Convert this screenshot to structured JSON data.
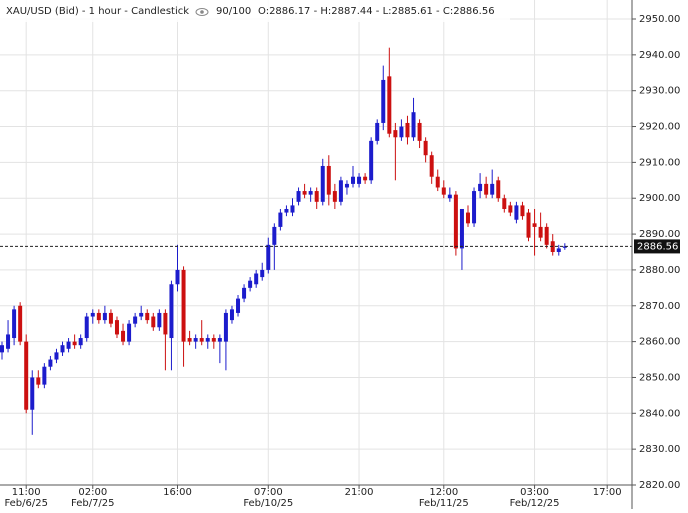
{
  "chart_data": {
    "type": "candlestick",
    "title": "XAU/USD (Bid) - 1 hour - Candlestick",
    "zoom": "90/100",
    "ohlc_text": "O:2886.17 - H:2887.44 - L:2885.61 - C:2886.56",
    "up_color": "#1c1ccc",
    "down_color": "#cc1010",
    "grid": true,
    "ylim": [
      2820,
      2955.3
    ],
    "yticks": [
      {
        "value": 2820,
        "label": "2820.00"
      },
      {
        "value": 2830,
        "label": "2830.00"
      },
      {
        "value": 2840,
        "label": "2840.00"
      },
      {
        "value": 2850,
        "label": "2850.00"
      },
      {
        "value": 2860,
        "label": "2860.00"
      },
      {
        "value": 2870,
        "label": "2870.00"
      },
      {
        "value": 2880,
        "label": "2880.00"
      },
      {
        "value": 2890,
        "label": "2890.00"
      },
      {
        "value": 2900,
        "label": "2900.00"
      },
      {
        "value": 2910,
        "label": "2910.00"
      },
      {
        "value": 2920,
        "label": "2920.00"
      },
      {
        "value": 2930,
        "label": "2930.00"
      },
      {
        "value": 2940,
        "label": "2940.00"
      },
      {
        "value": 2950,
        "label": "2950.00"
      }
    ],
    "xlim": [
      -0.33,
      104.1
    ],
    "xticks": [
      {
        "value": 4,
        "label": "11:00"
      },
      {
        "value": 15,
        "label": "02:00"
      },
      {
        "value": 29,
        "label": "16:00"
      },
      {
        "value": 44,
        "label": "07:00"
      },
      {
        "value": 59,
        "label": "21:00"
      },
      {
        "value": 73,
        "label": "12:00"
      },
      {
        "value": 88,
        "label": "03:00"
      },
      {
        "value": 100,
        "label": "17:00"
      }
    ],
    "date_ticks": [
      {
        "value": 4,
        "label": "Feb/6/25"
      },
      {
        "value": 15,
        "label": "Feb/7/25"
      },
      {
        "value": 44,
        "label": "Feb/10/25"
      },
      {
        "value": 73,
        "label": "Feb/11/25"
      },
      {
        "value": 88,
        "label": "Feb/12/25"
      }
    ],
    "open": [
      2857,
      2858,
      2861,
      2870,
      2860,
      2841,
      2850,
      2848,
      2853,
      2855,
      2857,
      2858,
      2860,
      2859,
      2861,
      2867,
      2868,
      2866,
      2868,
      2866,
      2863,
      2860,
      2865,
      2867,
      2868,
      2867,
      2864,
      2868,
      2861,
      2876,
      2880,
      2861,
      2860,
      2861,
      2860,
      2861,
      2860,
      2860,
      2866,
      2868,
      2872,
      2875,
      2876,
      2878,
      2880,
      2887,
      2892,
      2896,
      2896,
      2899,
      2902,
      2901,
      2902,
      2899,
      2909,
      2902,
      2899,
      2903,
      2904,
      2904,
      2906,
      2905,
      2916,
      2921,
      2934,
      2919,
      2917,
      2921,
      2917,
      2921,
      2916,
      2912,
      2906,
      2903,
      2900,
      2901,
      2886,
      2896,
      2893,
      2902,
      2904,
      2901,
      2905,
      2900,
      2898,
      2894,
      2898,
      2896,
      2893,
      2892,
      2892,
      2888,
      2885,
      2886.17
    ],
    "high": [
      2860,
      2866,
      2870,
      2871,
      2862,
      2852,
      2852,
      2854,
      2856,
      2858,
      2860,
      2861,
      2862,
      2862,
      2868,
      2869,
      2869,
      2870,
      2869,
      2867,
      2865,
      2866,
      2868,
      2870,
      2869,
      2868,
      2869,
      2869,
      2877,
      2887,
      2881,
      2863,
      2862,
      2866,
      2862,
      2862,
      2862,
      2869,
      2870,
      2873,
      2876,
      2878,
      2880,
      2882,
      2889,
      2893,
      2897,
      2898,
      2900,
      2903,
      2904,
      2903,
      2903,
      2911,
      2912,
      2904,
      2906,
      2905,
      2909,
      2907,
      2907,
      2917,
      2922,
      2937,
      2942,
      2921,
      2922,
      2923,
      2928,
      2922,
      2917,
      2913,
      2908,
      2905,
      2903,
      2902,
      2897,
      2898,
      2903,
      2907,
      2906,
      2908,
      2906,
      2901,
      2899,
      2899,
      2899,
      2897,
      2897,
      2896,
      2893,
      2890,
      2887,
      2887.44
    ],
    "low": [
      2855,
      2857,
      2859,
      2859,
      2840,
      2834,
      2847,
      2847,
      2852,
      2854,
      2856,
      2857,
      2858,
      2858,
      2860,
      2865,
      2865,
      2865,
      2864,
      2861,
      2859,
      2859,
      2864,
      2866,
      2865,
      2863,
      2863,
      2852,
      2852,
      2874,
      2853,
      2859,
      2858,
      2859,
      2858,
      2858,
      2854,
      2852,
      2865,
      2867,
      2871,
      2874,
      2875,
      2877,
      2879,
      2880,
      2891,
      2895,
      2895,
      2898,
      2900,
      2899,
      2897,
      2898,
      2898,
      2897,
      2898,
      2901,
      2903,
      2903,
      2904,
      2904,
      2915,
      2919,
      2917,
      2905,
      2916,
      2915,
      2916,
      2914,
      2910,
      2904,
      2902,
      2900,
      2899,
      2884,
      2880,
      2892,
      2892,
      2900,
      2900,
      2900,
      2899,
      2896,
      2895,
      2893,
      2894,
      2888,
      2884,
      2888,
      2886,
      2884,
      2884,
      2885.61
    ],
    "close": [
      2859,
      2862,
      2869,
      2860,
      2841,
      2850,
      2848,
      2853,
      2855,
      2857,
      2859,
      2860,
      2859,
      2861,
      2867,
      2868,
      2866,
      2868,
      2865,
      2862,
      2860,
      2865,
      2867,
      2868,
      2866,
      2864,
      2868,
      2862,
      2876,
      2880,
      2860,
      2860,
      2861,
      2860,
      2861,
      2860,
      2861,
      2868,
      2869,
      2872,
      2875,
      2877,
      2879,
      2880,
      2887,
      2892,
      2896,
      2897,
      2898,
      2902,
      2901,
      2902,
      2899,
      2909,
      2901,
      2899,
      2905,
      2904,
      2906,
      2906,
      2905,
      2916,
      2921,
      2933,
      2918,
      2917,
      2920,
      2917,
      2924,
      2916,
      2912,
      2906,
      2903,
      2901,
      2901,
      2886,
      2897,
      2893,
      2902,
      2904,
      2901,
      2904,
      2900,
      2897,
      2896,
      2898,
      2895,
      2889,
      2892,
      2889,
      2887,
      2885,
      2886,
      2886.56
    ]
  }
}
